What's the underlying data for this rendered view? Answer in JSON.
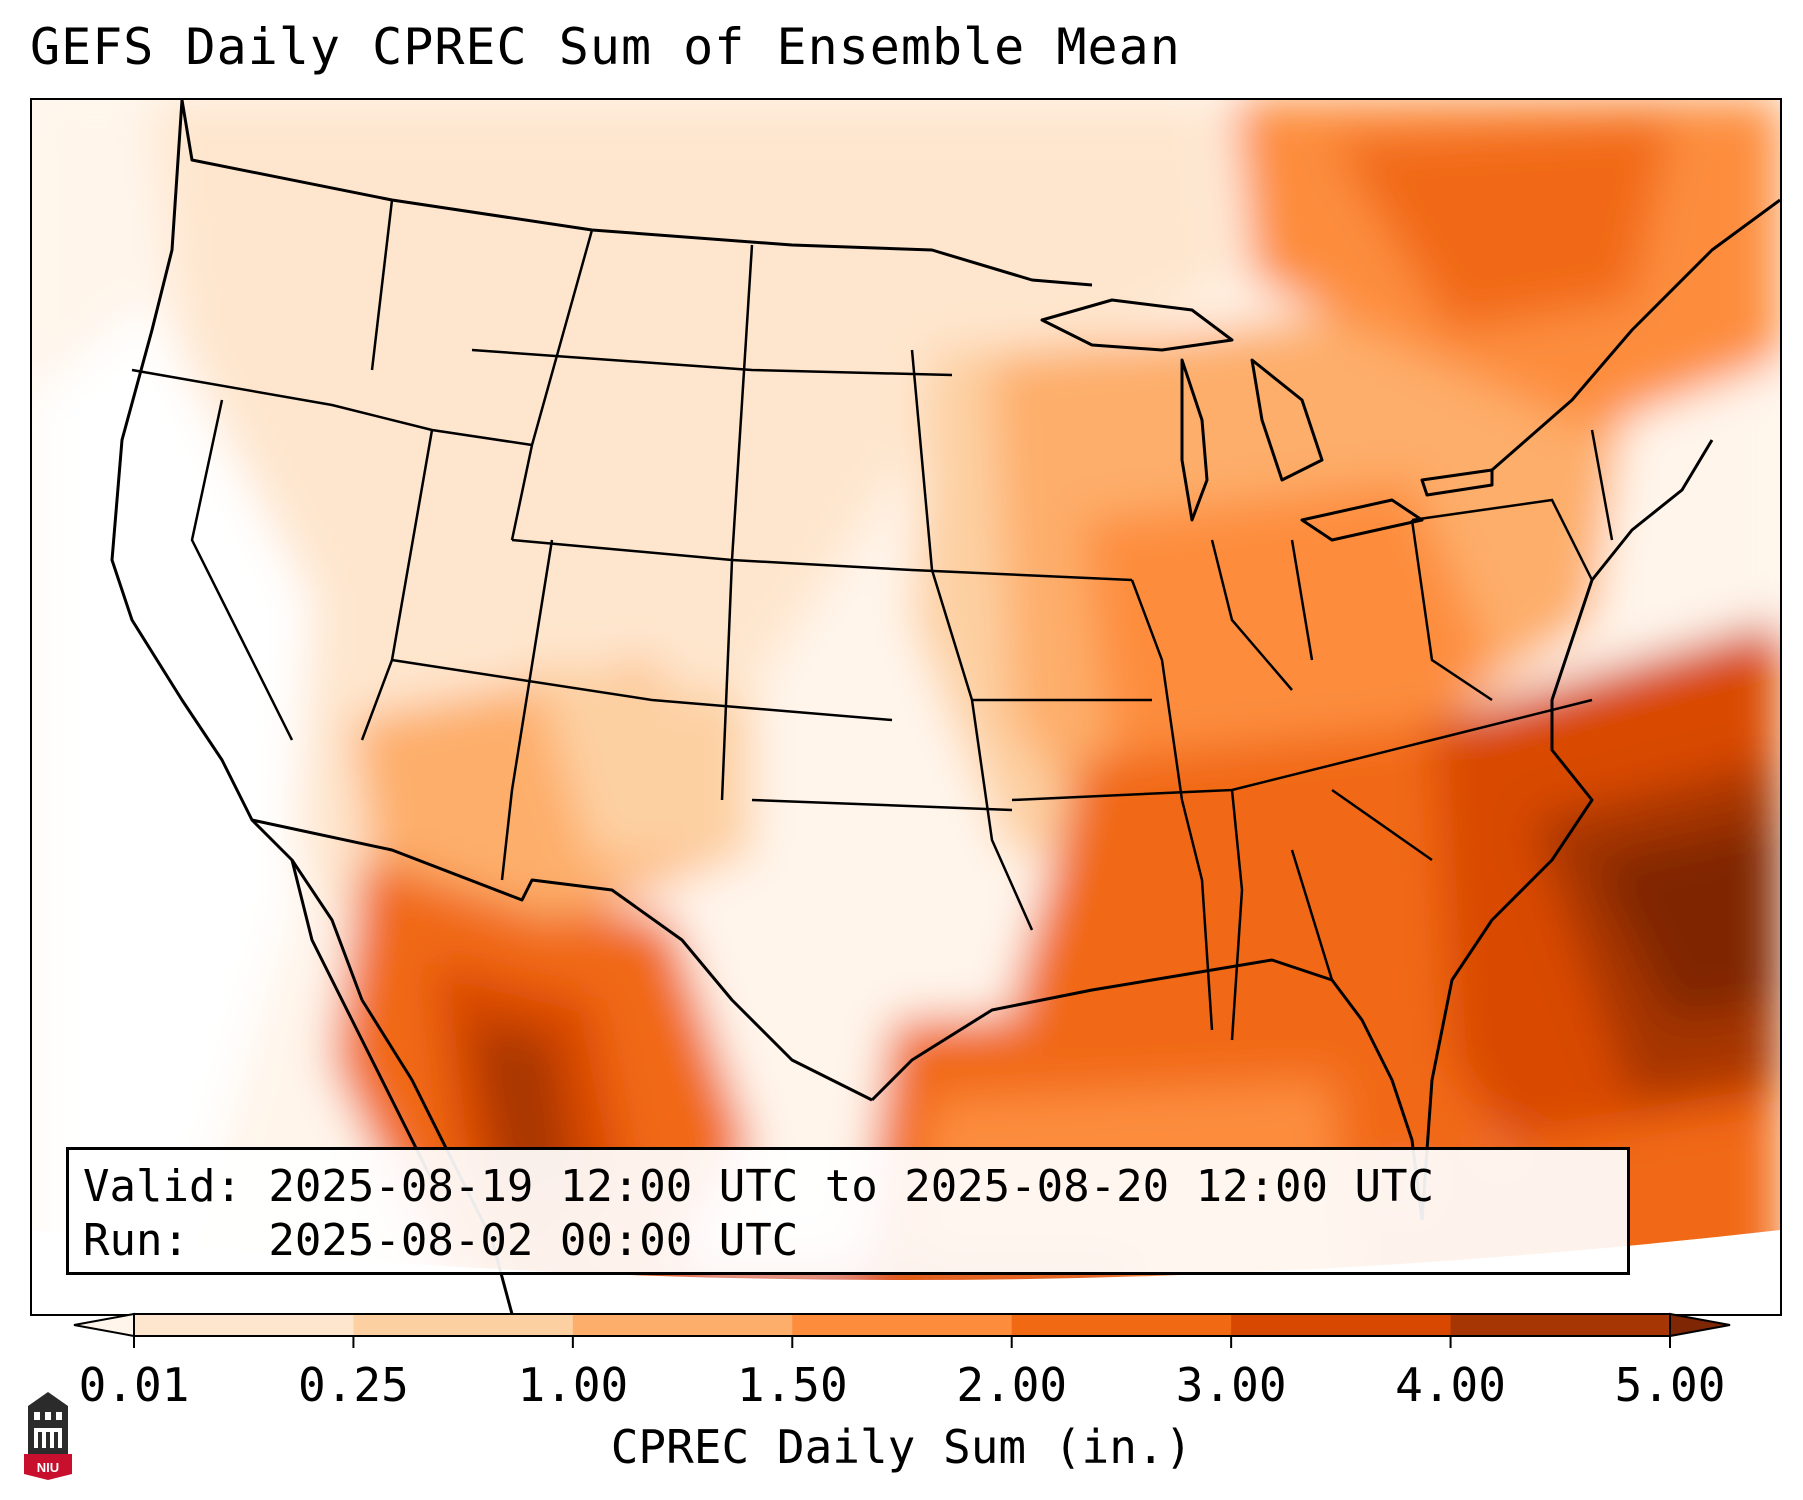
{
  "title": "GEFS Daily CPREC Sum of Ensemble Mean",
  "info": {
    "valid_line": "Valid: 2025-08-19 12:00 UTC to 2025-08-20 12:00 UTC",
    "run_line": "Run:   2025-08-02 00:00 UTC"
  },
  "colorbar": {
    "title": "CPREC Daily Sum (in.)",
    "ticks": [
      "0.01",
      "0.25",
      "1.00",
      "1.50",
      "2.00",
      "3.00",
      "4.00",
      "5.00"
    ],
    "colors": [
      "#fee6ce",
      "#fdd0a2",
      "#fdae6b",
      "#fd8d3c",
      "#f16913",
      "#d94801",
      "#a63603"
    ],
    "under_color": "#fff5eb",
    "over_color": "#7f2704",
    "extend": "both"
  },
  "logo": {
    "text": "NIU",
    "colors": {
      "tower": "#2b2b2b",
      "badge": "#c8102e"
    }
  },
  "map": {
    "projection": "Lambert conformal, CONUS",
    "background_color": "#fff7ef",
    "line_color": "#000000",
    "field": "CPREC daily sum, ensemble mean"
  }
}
